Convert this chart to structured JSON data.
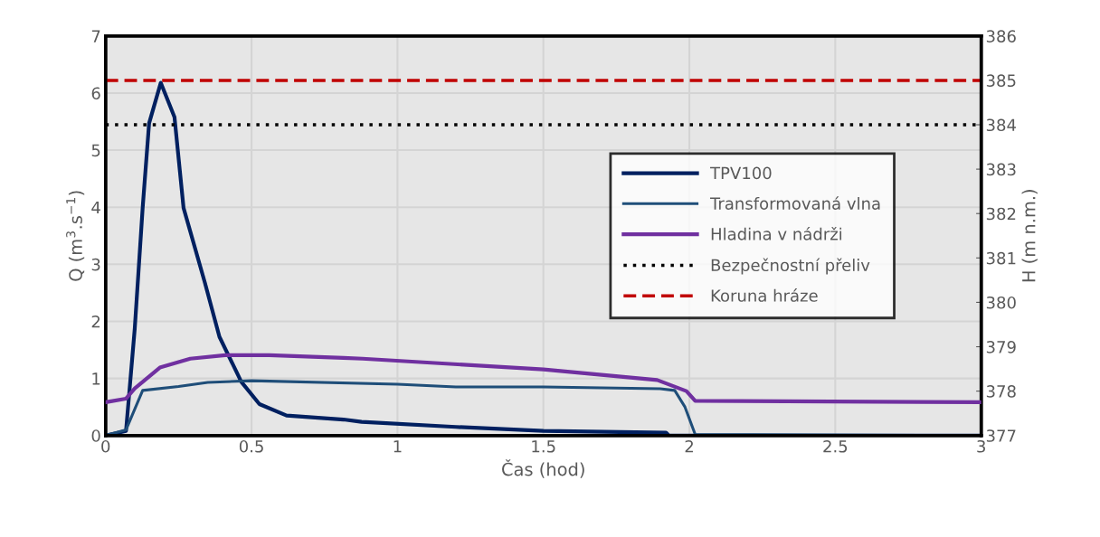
{
  "chart_data": {
    "type": "line",
    "xlabel": "Čas (hod)",
    "ylabel": "Q (m$^{3}$.s$^{−1}$)",
    "y2label": "H (m n.m.)",
    "xlim": [
      0,
      3
    ],
    "xticks": [
      0,
      0.5,
      1,
      1.5,
      2,
      2.5,
      3
    ],
    "ylim": [
      0,
      7
    ],
    "yticks": [
      0,
      1,
      2,
      3,
      4,
      5,
      6,
      7
    ],
    "y2lim": [
      377,
      386
    ],
    "y2ticks": [
      377,
      378,
      379,
      380,
      381,
      382,
      383,
      384,
      385,
      386
    ],
    "grid": true,
    "legend": "right",
    "line_style": "solid",
    "marker": "none",
    "series": [
      {
        "name": "TPV100",
        "color": "#002060",
        "x": [
          0,
          0.07,
          0.1,
          0.127,
          0.149,
          0.189,
          0.236,
          0.267,
          0.34,
          0.39,
          0.465,
          0.527,
          0.62,
          0.815,
          0.877,
          1.2,
          1.5,
          1.92,
          1.93,
          3
        ],
        "values": [
          0,
          0.08,
          1.88,
          3.99,
          5.47,
          6.18,
          5.58,
          3.99,
          2.68,
          1.73,
          0.94,
          0.55,
          0.35,
          0.28,
          0.24,
          0.15,
          0.08,
          0.05,
          0,
          0
        ]
      },
      {
        "name": "Transformovaná vlna",
        "color": "#1f4e79",
        "x": [
          0,
          0.07,
          0.127,
          0.25,
          0.35,
          0.5,
          1.0,
          1.2,
          1.5,
          1.9,
          1.95,
          1.985,
          2.02,
          3
        ],
        "values": [
          0,
          0.1,
          0.79,
          0.86,
          0.93,
          0.96,
          0.9,
          0.85,
          0.85,
          0.82,
          0.79,
          0.5,
          0.02,
          0
        ]
      },
      {
        "name": "Hladina v nádrži",
        "color": "#7030a0",
        "axis": "y2",
        "x": [
          0,
          0.07,
          0.1,
          0.186,
          0.29,
          0.41,
          0.56,
          0.815,
          0.88,
          1.5,
          1.89,
          1.99,
          2.02,
          3
        ],
        "values": [
          377.75,
          377.83,
          378.06,
          378.53,
          378.73,
          378.81,
          378.81,
          378.75,
          378.73,
          378.49,
          378.25,
          378.0,
          377.78,
          377.75
        ]
      }
    ],
    "ref_lines": [
      {
        "axis": "y2",
        "value": 384,
        "label": "Bezpečnostní přeliv",
        "color": "#000000",
        "line_style": "dotted"
      },
      {
        "axis": "y2",
        "value": 385,
        "label": "Koruna hráze",
        "color": "#c00000",
        "line_style": "dashed"
      }
    ]
  }
}
